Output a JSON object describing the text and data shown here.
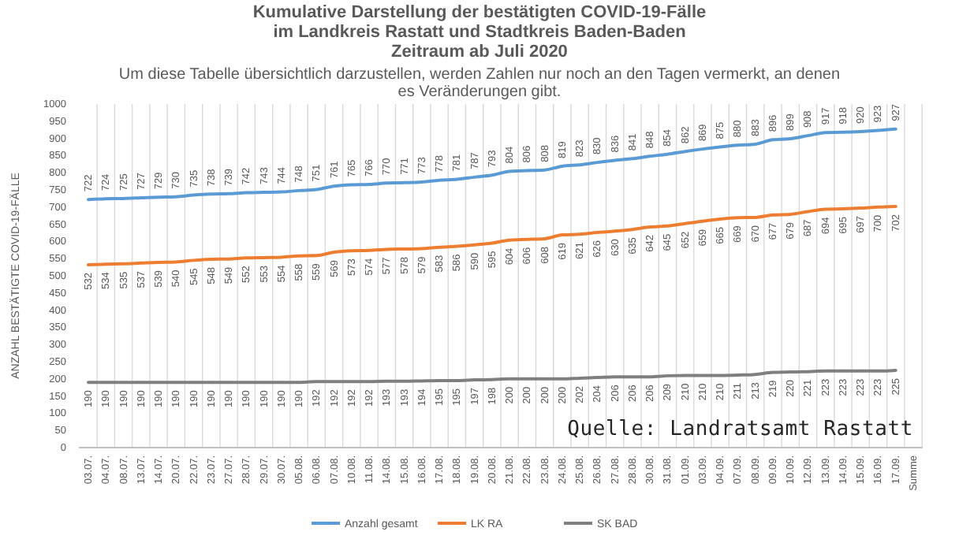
{
  "chart_data": {
    "type": "line",
    "title": "Kumulative Darstellung der bestätigten COVID-19-Fälle\nim Landkreis Rastatt und Stadtkreis Baden-Baden\nZeitraum ab Juli  2020",
    "subtitle": "Um diese Tabelle übersichtlich darzustellen, werden Zahlen nur noch an den Tagen vermerkt, an denen\nes Veränderungen gibt.",
    "ylabel": "ANZAHL BESTÄTIGTE COVID-19-FÄLLE",
    "categories": [
      "03.07.",
      "04.07.",
      "08.07.",
      "13.07.",
      "14.07.",
      "20.07.",
      "22.07.",
      "23.07.",
      "27.07.",
      "28.07.",
      "29.07.",
      "30.07.",
      "05.08.",
      "06.08.",
      "07.08.",
      "10.08.",
      "11.08.",
      "14.08.",
      "15.08.",
      "16.08.",
      "17.08.",
      "18.08.",
      "19.08.",
      "20.08.",
      "21.08.",
      "22.08.",
      "23.08.",
      "24.08.",
      "25.08.",
      "26.08.",
      "27.08.",
      "28.08.",
      "30.08.",
      "31.08.",
      "01.09.",
      "03.09.",
      "04.09.",
      "07.09.",
      "08.09.",
      "09.09.",
      "10.09.",
      "12.09.",
      "13.09.",
      "14.09.",
      "15.09.",
      "16.09.",
      "17.09.",
      "Summe"
    ],
    "series": [
      {
        "name": "Anzahl gesamt",
        "color": "#5b9bd5",
        "values": [
          722,
          724,
          725,
          727,
          729,
          730,
          735,
          738,
          739,
          742,
          743,
          744,
          748,
          751,
          761,
          765,
          766,
          770,
          771,
          773,
          778,
          781,
          787,
          793,
          804,
          806,
          808,
          819,
          823,
          830,
          836,
          841,
          848,
          854,
          862,
          869,
          875,
          880,
          883,
          896,
          899,
          908,
          917,
          918,
          920,
          923,
          927,
          null
        ]
      },
      {
        "name": "LK RA",
        "color": "#ed7d31",
        "values": [
          532,
          534,
          535,
          537,
          539,
          540,
          545,
          548,
          549,
          552,
          553,
          554,
          558,
          559,
          569,
          573,
          574,
          577,
          578,
          579,
          583,
          586,
          590,
          595,
          604,
          606,
          608,
          619,
          621,
          626,
          630,
          635,
          642,
          645,
          652,
          659,
          665,
          669,
          670,
          677,
          679,
          687,
          694,
          695,
          697,
          700,
          702,
          null
        ]
      },
      {
        "name": "SK BAD",
        "color": "#7f7f7f",
        "values": [
          190,
          190,
          190,
          190,
          190,
          190,
          190,
          190,
          190,
          190,
          190,
          190,
          190,
          192,
          192,
          192,
          192,
          193,
          193,
          194,
          195,
          195,
          197,
          198,
          200,
          200,
          200,
          200,
          202,
          204,
          206,
          206,
          206,
          209,
          210,
          210,
          210,
          211,
          213,
          219,
          220,
          221,
          223,
          223,
          223,
          223,
          225,
          null
        ]
      }
    ],
    "ylim": [
      0,
      1000
    ],
    "yticks": [
      0,
      50,
      100,
      150,
      200,
      250,
      300,
      350,
      400,
      450,
      500,
      550,
      600,
      650,
      700,
      750,
      800,
      850,
      900,
      950,
      1000
    ],
    "grid": "x",
    "legend": "bottom",
    "data_labels": true,
    "annotations": [
      "Quelle: Landratsamt Rastatt"
    ]
  }
}
